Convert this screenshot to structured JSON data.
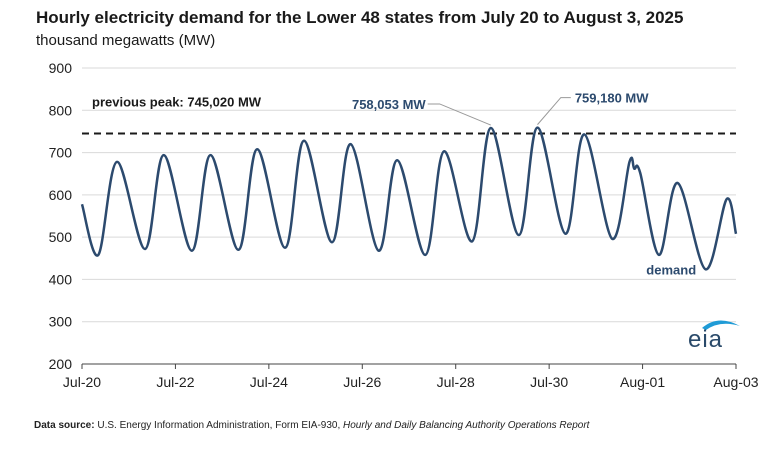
{
  "chart_data": {
    "type": "line",
    "title": "Hourly electricity demand for the Lower 48 states from July 20 to August 3, 2025",
    "subtitle": "thousand megawatts (MW)",
    "ylim": [
      200,
      900
    ],
    "yticks": [
      "200",
      "300",
      "400",
      "500",
      "600",
      "700",
      "800",
      "900"
    ],
    "xlim": [
      0,
      14
    ],
    "xticks": [
      {
        "label": "Jul-20",
        "x": 0
      },
      {
        "label": "Jul-22",
        "x": 2
      },
      {
        "label": "Jul-24",
        "x": 4
      },
      {
        "label": "Jul-26",
        "x": 6
      },
      {
        "label": "Jul-28",
        "x": 8
      },
      {
        "label": "Jul-30",
        "x": 10
      },
      {
        "label": "Aug-01",
        "x": 12
      },
      {
        "label": "Aug-03",
        "x": 14
      }
    ],
    "series": [
      {
        "name": "demand",
        "x": [
          0,
          0.35,
          0.75,
          1.35,
          1.75,
          2.35,
          2.75,
          3.35,
          3.75,
          4.35,
          4.75,
          5.35,
          5.75,
          6.35,
          6.75,
          7.35,
          7.75,
          8.35,
          8.75,
          9.35,
          9.75,
          10.35,
          10.75,
          11.35,
          11.72,
          11.82,
          11.95,
          12.35,
          12.75,
          13.35,
          13.8,
          14.0
        ],
        "values": [
          578,
          458,
          678,
          472,
          694,
          468,
          694,
          470,
          708,
          475,
          728,
          488,
          720,
          468,
          682,
          458,
          703,
          490,
          758,
          505,
          759,
          508,
          743,
          496,
          678,
          662,
          652,
          458,
          628,
          424,
          590,
          508
        ]
      }
    ],
    "reference_line": {
      "value": 745,
      "label": "previous peak: 745,020 MW"
    },
    "annotations": [
      {
        "text": "758,053 MW",
        "x": 8.75,
        "y": 758
      },
      {
        "text": "759,180 MW",
        "x": 9.75,
        "y": 759
      }
    ],
    "series_label": "demand",
    "colors": {
      "line": "#2c4a6e",
      "reference": "#1a1a1a",
      "grid": "#d9d9d9",
      "annotation": "#2c4a6e"
    }
  },
  "source": {
    "label": "Data source:",
    "text": " U.S. Energy Information Administration, Form EIA-930, ",
    "italic": "Hourly and Daily Balancing Authority Operations Report"
  },
  "logo_text": "eia"
}
